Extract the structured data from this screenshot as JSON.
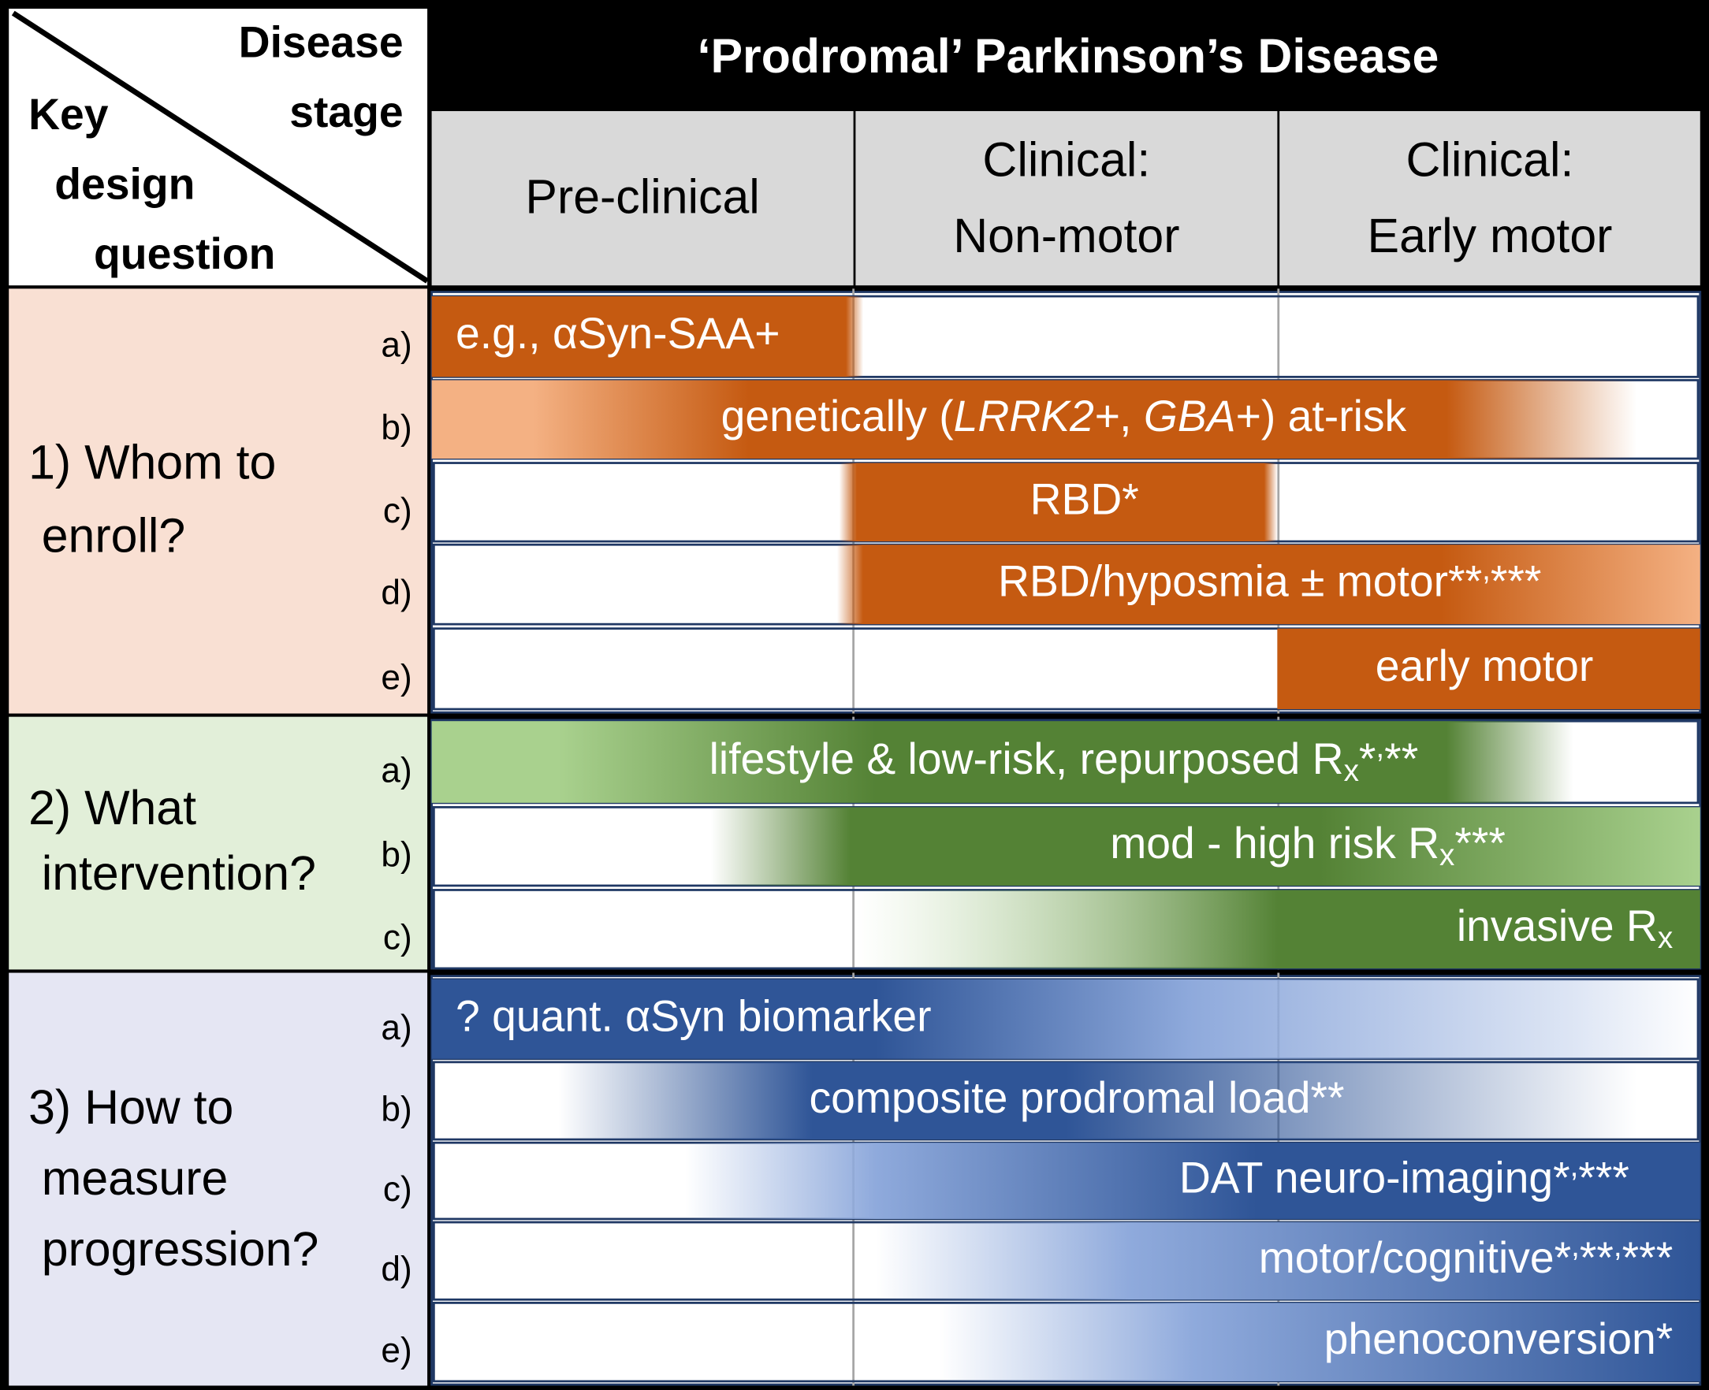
{
  "header": {
    "title": "‘Prodromal’ Parkinson’s Disease",
    "stage_label": [
      "Disease",
      "stage"
    ],
    "question_label": [
      "Key",
      "design",
      "question"
    ],
    "stages": [
      [
        "Pre-clinical"
      ],
      [
        "Clinical:",
        "Non-motor"
      ],
      [
        "Clinical:",
        "Early motor"
      ]
    ]
  },
  "sections": [
    {
      "label": [
        "1) Whom to",
        "enroll?"
      ],
      "rows": [
        {
          "letter": "a)",
          "parts": [
            {
              "text": "e.g., αSyn-SAA+"
            }
          ]
        },
        {
          "letter": "b)",
          "parts": [
            {
              "text": "genetically ("
            },
            {
              "text": "LRRK2+",
              "style": "italic"
            },
            {
              "text": ", "
            },
            {
              "text": "GBA",
              "style": "italic"
            },
            {
              "text": "+) at-risk"
            }
          ]
        },
        {
          "letter": "c)",
          "parts": [
            {
              "text": "RBD*"
            }
          ]
        },
        {
          "letter": "d)",
          "parts": [
            {
              "text": "RBD/hyposmia  ±  motor**"
            },
            {
              "text": ",",
              "style": "sup"
            },
            {
              "text": "***"
            }
          ]
        },
        {
          "letter": "e)",
          "parts": [
            {
              "text": "early motor"
            }
          ]
        }
      ]
    },
    {
      "label": [
        "2) What",
        "intervention?"
      ],
      "rows": [
        {
          "letter": "a)",
          "parts": [
            {
              "text": "lifestyle & low-risk, repurposed R"
            },
            {
              "text": "x",
              "style": "sub"
            },
            {
              "text": "*"
            },
            {
              "text": ",",
              "style": "sup"
            },
            {
              "text": "**"
            }
          ]
        },
        {
          "letter": "b)",
          "parts": [
            {
              "text": "mod - high risk R"
            },
            {
              "text": "x",
              "style": "sub"
            },
            {
              "text": "***"
            }
          ]
        },
        {
          "letter": "c)",
          "parts": [
            {
              "text": "invasive R"
            },
            {
              "text": "x",
              "style": "sub"
            }
          ]
        }
      ]
    },
    {
      "label": [
        "3) How to",
        "measure",
        "progression?"
      ],
      "rows": [
        {
          "letter": "a)",
          "parts": [
            {
              "text": "? quant. αSyn biomarker"
            }
          ]
        },
        {
          "letter": "b)",
          "parts": [
            {
              "text": "composite prodromal load**"
            }
          ]
        },
        {
          "letter": "c)",
          "parts": [
            {
              "text": "DAT neuro-imaging*"
            },
            {
              "text": ",",
              "style": "sup"
            },
            {
              "text": "***"
            }
          ]
        },
        {
          "letter": "d)",
          "parts": [
            {
              "text": "motor/cognitive*"
            },
            {
              "text": ",",
              "style": "sup"
            },
            {
              "text": "**"
            },
            {
              "text": ",",
              "style": "sup"
            },
            {
              "text": "***"
            }
          ]
        },
        {
          "letter": "e)",
          "parts": [
            {
              "text": "phenoconversion*"
            }
          ]
        }
      ]
    }
  ]
}
